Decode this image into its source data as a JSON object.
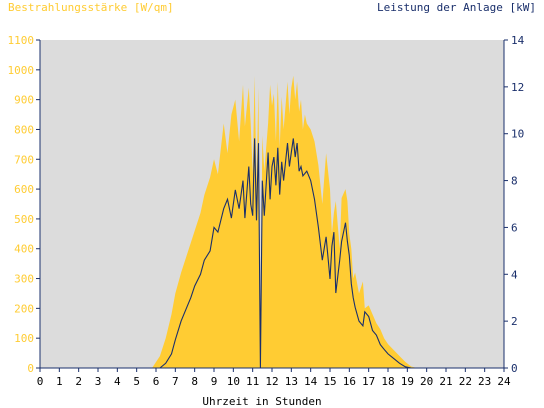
{
  "chart_data": {
    "type": "area",
    "title_left": "Bestrahlungsstärke [W/qm]",
    "title_right": "Leistung der Anlage [kW]",
    "xlabel": "Uhrzeit in Stunden",
    "x_ticks": [
      "0",
      "1",
      "2",
      "3",
      "4",
      "5",
      "6",
      "7",
      "8",
      "9",
      "10",
      "11",
      "12",
      "13",
      "14",
      "15",
      "16",
      "17",
      "18",
      "19",
      "20",
      "21",
      "22",
      "23",
      "24"
    ],
    "xlim": [
      0,
      24
    ],
    "ylim_left": [
      0,
      1100
    ],
    "ylim_right": [
      0,
      14
    ],
    "y_ticks_left": [
      "0",
      "100",
      "200",
      "300",
      "400",
      "500",
      "600",
      "700",
      "800",
      "900",
      "1000",
      "1100"
    ],
    "y_ticks_right": [
      "0",
      "2",
      "4",
      "6",
      "8",
      "10",
      "12",
      "14"
    ],
    "background_color": "#dcdcdc",
    "colors": {
      "irradiance": "#ffcc33",
      "power": "#1a2f6b",
      "left_axis_text": "#ffcc33",
      "right_axis_text": "#1a2f6b"
    },
    "series": [
      {
        "axis": "left",
        "x": [
          0,
          5.8,
          6.0,
          6.2,
          6.5,
          6.8,
          7.0,
          7.3,
          7.6,
          7.8,
          8.0,
          8.3,
          8.5,
          8.8,
          9.0,
          9.2,
          9.5,
          9.7,
          9.9,
          10.1,
          10.3,
          10.5,
          10.6,
          10.8,
          10.9,
          11.0,
          11.1,
          11.2,
          11.3,
          11.4,
          11.5,
          11.6,
          11.8,
          11.9,
          12.0,
          12.1,
          12.2,
          12.3,
          12.4,
          12.5,
          12.6,
          12.8,
          12.9,
          13.0,
          13.1,
          13.2,
          13.3,
          13.4,
          13.5,
          13.6,
          13.7,
          13.8,
          14.0,
          14.2,
          14.4,
          14.6,
          14.8,
          15.0,
          15.1,
          15.2,
          15.3,
          15.5,
          15.6,
          15.8,
          15.9,
          16.0,
          16.1,
          16.2,
          16.3,
          16.5,
          16.7,
          16.8,
          17.0,
          17.2,
          17.4,
          17.6,
          17.8,
          18.0,
          18.3,
          18.6,
          18.9,
          19.2,
          19.5,
          24
        ],
        "values": [
          0,
          0,
          20,
          40,
          100,
          180,
          250,
          320,
          380,
          420,
          460,
          520,
          580,
          640,
          700,
          650,
          820,
          720,
          850,
          900,
          760,
          950,
          810,
          940,
          820,
          650,
          980,
          620,
          940,
          0,
          780,
          660,
          820,
          950,
          880,
          920,
          760,
          960,
          740,
          910,
          800,
          960,
          850,
          940,
          980,
          900,
          960,
          860,
          900,
          800,
          850,
          820,
          800,
          760,
          680,
          550,
          720,
          600,
          450,
          520,
          560,
          400,
          570,
          600,
          560,
          450,
          400,
          300,
          320,
          250,
          290,
          200,
          210,
          180,
          150,
          130,
          100,
          80,
          60,
          40,
          20,
          5,
          0,
          0
        ]
      },
      {
        "axis": "right",
        "x": [
          0,
          6.2,
          6.5,
          6.8,
          7.0,
          7.3,
          7.6,
          7.8,
          8.0,
          8.3,
          8.5,
          8.8,
          9.0,
          9.2,
          9.5,
          9.7,
          9.9,
          10.1,
          10.3,
          10.5,
          10.6,
          10.8,
          10.9,
          11.0,
          11.1,
          11.2,
          11.3,
          11.4,
          11.5,
          11.6,
          11.8,
          11.9,
          12.0,
          12.1,
          12.2,
          12.3,
          12.4,
          12.5,
          12.6,
          12.8,
          12.9,
          13.0,
          13.1,
          13.2,
          13.3,
          13.4,
          13.5,
          13.6,
          13.8,
          14.0,
          14.2,
          14.4,
          14.6,
          14.8,
          15.0,
          15.1,
          15.2,
          15.3,
          15.5,
          15.6,
          15.8,
          15.9,
          16.0,
          16.1,
          16.2,
          16.3,
          16.5,
          16.7,
          16.8,
          17.0,
          17.2,
          17.4,
          17.6,
          17.8,
          18.0,
          18.3,
          18.6,
          18.9,
          19.2,
          19.5,
          24
        ],
        "values": [
          0,
          0,
          0.2,
          0.6,
          1.2,
          2.0,
          2.6,
          3.0,
          3.5,
          4.0,
          4.6,
          5.0,
          6.0,
          5.8,
          6.8,
          7.2,
          6.4,
          7.6,
          6.8,
          8.0,
          6.4,
          8.6,
          7.0,
          6.5,
          9.8,
          6.3,
          9.6,
          0,
          8.0,
          6.5,
          9.2,
          7.2,
          8.6,
          9.0,
          7.8,
          9.4,
          7.4,
          8.8,
          8.0,
          9.6,
          8.6,
          9.2,
          9.8,
          9.0,
          9.6,
          8.4,
          8.6,
          8.2,
          8.4,
          8.0,
          7.2,
          6.0,
          4.6,
          5.6,
          3.8,
          5.2,
          5.8,
          3.2,
          4.6,
          5.4,
          6.2,
          5.4,
          4.8,
          3.6,
          3.0,
          2.6,
          2.0,
          1.8,
          2.4,
          2.2,
          1.6,
          1.4,
          1.0,
          0.8,
          0.6,
          0.4,
          0.2,
          0.05,
          0,
          0,
          0
        ]
      }
    ]
  }
}
